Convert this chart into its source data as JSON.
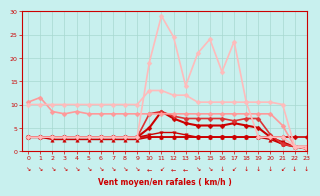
{
  "bg_color": "#c8f0ee",
  "grid_color": "#a8d8d0",
  "xlabel": "Vent moyen/en rafales ( km/h )",
  "xlim": [
    -0.5,
    23
  ],
  "ylim": [
    0,
    30
  ],
  "yticks": [
    0,
    5,
    10,
    15,
    20,
    25,
    30
  ],
  "xticks": [
    0,
    1,
    2,
    3,
    4,
    5,
    6,
    7,
    8,
    9,
    10,
    11,
    12,
    13,
    14,
    15,
    16,
    17,
    18,
    19,
    20,
    21,
    22,
    23
  ],
  "lines": [
    {
      "x": [
        0,
        1,
        2,
        3,
        4,
        5,
        6,
        7,
        8,
        9,
        10,
        11,
        12,
        13,
        14,
        15,
        16,
        17,
        18,
        19,
        20,
        21,
        22,
        23
      ],
      "y": [
        3,
        3,
        3,
        3,
        3,
        3,
        3,
        3,
        3,
        3,
        3,
        3,
        3,
        3,
        3,
        3,
        3,
        3,
        3,
        3,
        3,
        3,
        3,
        3
      ],
      "color": "#cc0000",
      "lw": 1.2,
      "marker": "D",
      "ms": 2.5
    },
    {
      "x": [
        0,
        1,
        2,
        3,
        4,
        5,
        6,
        7,
        8,
        9,
        10,
        11,
        12,
        13,
        14,
        15,
        16,
        17,
        18,
        19,
        20,
        21,
        22,
        23
      ],
      "y": [
        3,
        3,
        2.5,
        2.5,
        2.5,
        2.5,
        2.5,
        2.5,
        2.5,
        2.5,
        3,
        3,
        3,
        3,
        3,
        3,
        3,
        3,
        3,
        3,
        2.5,
        1.5,
        1,
        0.5
      ],
      "color": "#cc0000",
      "lw": 1.0,
      "marker": "^",
      "ms": 2.5
    },
    {
      "x": [
        0,
        1,
        2,
        3,
        4,
        5,
        6,
        7,
        8,
        9,
        10,
        11,
        12,
        13,
        14,
        15,
        16,
        17,
        18,
        19,
        20,
        21,
        22,
        23
      ],
      "y": [
        3,
        3,
        3,
        3,
        3,
        3,
        3,
        3,
        3,
        3,
        3.5,
        4,
        4,
        3.5,
        3,
        3,
        3,
        3,
        3,
        3,
        3,
        2,
        1,
        0.5
      ],
      "color": "#cc0000",
      "lw": 1.0,
      "marker": "v",
      "ms": 2.5
    },
    {
      "x": [
        0,
        1,
        2,
        3,
        4,
        5,
        6,
        7,
        8,
        9,
        10,
        11,
        12,
        13,
        14,
        15,
        16,
        17,
        18,
        19,
        20,
        21,
        22,
        23
      ],
      "y": [
        3,
        3,
        3,
        3,
        3,
        3,
        3,
        3,
        3,
        3,
        5,
        8.5,
        7,
        6,
        5.5,
        5.5,
        5.5,
        6,
        5.5,
        5,
        3,
        1.5,
        1,
        0.5
      ],
      "color": "#cc0000",
      "lw": 1.5,
      "marker": "D",
      "ms": 2.5
    },
    {
      "x": [
        0,
        1,
        2,
        3,
        4,
        5,
        6,
        7,
        8,
        9,
        10,
        11,
        12,
        13,
        14,
        15,
        16,
        17,
        18,
        19,
        20,
        21,
        22,
        23
      ],
      "y": [
        3,
        3,
        3,
        3,
        3,
        3,
        3,
        3,
        3,
        3,
        8,
        8.5,
        7.5,
        7,
        7,
        7,
        7,
        6.5,
        7,
        7,
        3.5,
        1.5,
        1,
        1
      ],
      "color": "#dd3333",
      "lw": 1.2,
      "marker": "D",
      "ms": 2.5
    },
    {
      "x": [
        0,
        1,
        2,
        3,
        4,
        5,
        6,
        7,
        8,
        9,
        10,
        11,
        12,
        13,
        14,
        15,
        16,
        17,
        18,
        19,
        20,
        21,
        22,
        23
      ],
      "y": [
        10.5,
        11.5,
        8.5,
        8,
        8.5,
        8,
        8,
        8,
        8,
        8,
        8,
        8,
        8,
        8,
        8,
        8,
        8,
        8,
        8,
        8,
        8,
        5.5,
        1,
        1
      ],
      "color": "#ff9999",
      "lw": 1.2,
      "marker": "D",
      "ms": 2.5
    },
    {
      "x": [
        0,
        1,
        2,
        3,
        4,
        5,
        6,
        7,
        8,
        9,
        10,
        11,
        12,
        13,
        14,
        15,
        16,
        17,
        18,
        19,
        20,
        21,
        22,
        23
      ],
      "y": [
        10,
        10,
        10,
        10,
        10,
        10,
        10,
        10,
        10,
        10,
        13,
        13,
        12,
        12,
        10.5,
        10.5,
        10.5,
        10.5,
        10.5,
        10.5,
        10.5,
        10,
        1,
        1
      ],
      "color": "#ffbbbb",
      "lw": 1.2,
      "marker": "D",
      "ms": 2.5
    },
    {
      "x": [
        0,
        1,
        2,
        3,
        4,
        5,
        6,
        7,
        8,
        9,
        10,
        11,
        12,
        13,
        14,
        15,
        16,
        17,
        18,
        19,
        20,
        21,
        22,
        23
      ],
      "y": [
        3,
        3,
        3,
        3,
        3,
        3,
        3,
        3,
        3,
        3,
        19,
        29,
        24.5,
        14,
        21,
        24,
        17,
        23.5,
        10.5,
        3,
        3,
        3,
        1,
        0.5
      ],
      "color": "#ffbbbb",
      "lw": 1.2,
      "marker": "D",
      "ms": 2.5
    }
  ],
  "arrow_chars": [
    "↘",
    "↘",
    "↘",
    "↘",
    "↘",
    "↘",
    "↘",
    "↘",
    "↘",
    "↘",
    "←",
    "↙",
    "←",
    "←",
    "↘",
    "↘",
    "↓",
    "↙",
    "↓",
    "↓",
    "↓",
    "↙",
    "↓",
    "↓"
  ],
  "arrow_color": "#cc0000"
}
